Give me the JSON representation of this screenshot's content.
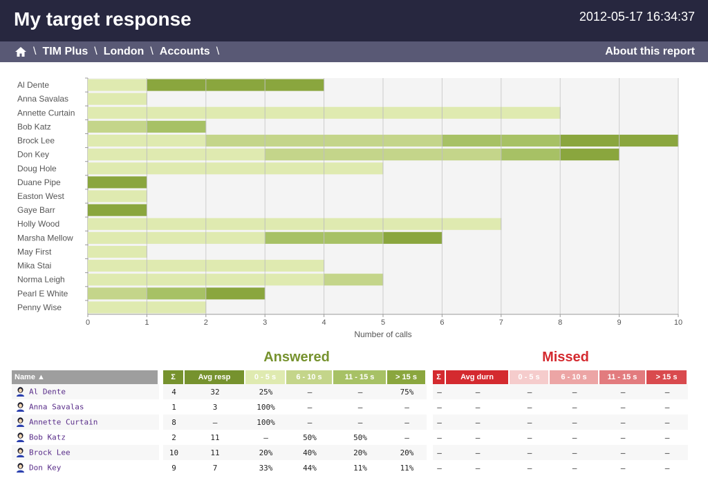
{
  "header": {
    "title": "My target response",
    "datetime": "2012-05-17 16:34:37"
  },
  "breadcrumb": {
    "home_icon": "home-icon",
    "items": [
      "TIM Plus",
      "London",
      "Accounts"
    ],
    "separator": "\\",
    "about": "About this report"
  },
  "colors": {
    "header_bg": "#27273f",
    "breadcrumb_bg": "#595975",
    "bucket_0_5": "#dfeab0",
    "bucket_6_10": "#c4d58a",
    "bucket_11_15": "#a7c165",
    "bucket_over_15": "#8aa63e",
    "answered_accent": "#76922e",
    "missed_accent": "#d42a2f"
  },
  "chart_data": {
    "type": "bar",
    "orientation": "horizontal",
    "stacked": true,
    "categories": [
      "Al Dente",
      "Anna Savalas",
      "Annette Curtain",
      "Bob Katz",
      "Brock Lee",
      "Don Key",
      "Doug Hole",
      "Duane Pipe",
      "Easton West",
      "Gaye Barr",
      "Holly Wood",
      "Marsha Mellow",
      "May First",
      "Mika Stai",
      "Norma Leigh",
      "Pearl E White",
      "Penny Wise"
    ],
    "series": [
      {
        "name": "0 - 5 s",
        "values": [
          1,
          1,
          8,
          0,
          2,
          3,
          5,
          0,
          1,
          0,
          7,
          3,
          1,
          4,
          4,
          0,
          2
        ]
      },
      {
        "name": "6 - 10 s",
        "values": [
          0,
          0,
          0,
          1,
          4,
          4,
          0,
          0,
          0,
          0,
          0,
          0,
          0,
          0,
          1,
          1,
          0
        ]
      },
      {
        "name": "11 - 15 s",
        "values": [
          0,
          0,
          0,
          1,
          2,
          1,
          0,
          0,
          0,
          0,
          0,
          2,
          0,
          0,
          0,
          1,
          0
        ]
      },
      {
        "name": "> 15 s",
        "values": [
          3,
          0,
          0,
          0,
          2,
          1,
          0,
          1,
          0,
          1,
          0,
          1,
          0,
          0,
          0,
          1,
          0
        ]
      }
    ],
    "xlabel": "Number of calls",
    "xlim": [
      0,
      10
    ],
    "xticks": [
      0,
      1,
      2,
      3,
      4,
      5,
      6,
      7,
      8,
      9,
      10
    ],
    "grid": true
  },
  "table": {
    "answered_title": "Answered",
    "missed_title": "Missed",
    "headers": {
      "name": "Name ▲",
      "answered": [
        "Σ",
        "Avg resp",
        "0 - 5 s",
        "6 - 10 s",
        "11 - 15 s",
        "> 15 s"
      ],
      "missed": [
        "Σ",
        "Avg durn",
        "0 - 5 s",
        "6 - 10 s",
        "11 - 15 s",
        "> 15 s"
      ]
    },
    "rows": [
      {
        "name": "Al Dente",
        "sum": "4",
        "avg": "32",
        "b1": "25%",
        "b2": "–",
        "b3": "–",
        "b4": "75%",
        "m_sum": "–",
        "m_avg": "–",
        "m1": "–",
        "m2": "–",
        "m3": "–",
        "m4": "–"
      },
      {
        "name": "Anna Savalas",
        "sum": "1",
        "avg": "3",
        "b1": "100%",
        "b2": "–",
        "b3": "–",
        "b4": "–",
        "m_sum": "–",
        "m_avg": "–",
        "m1": "–",
        "m2": "–",
        "m3": "–",
        "m4": "–"
      },
      {
        "name": "Annette Curtain",
        "sum": "8",
        "avg": "–",
        "b1": "100%",
        "b2": "–",
        "b3": "–",
        "b4": "–",
        "m_sum": "–",
        "m_avg": "–",
        "m1": "–",
        "m2": "–",
        "m3": "–",
        "m4": "–"
      },
      {
        "name": "Bob Katz",
        "sum": "2",
        "avg": "11",
        "b1": "–",
        "b2": "50%",
        "b3": "50%",
        "b4": "–",
        "m_sum": "–",
        "m_avg": "–",
        "m1": "–",
        "m2": "–",
        "m3": "–",
        "m4": "–"
      },
      {
        "name": "Brock Lee",
        "sum": "10",
        "avg": "11",
        "b1": "20%",
        "b2": "40%",
        "b3": "20%",
        "b4": "20%",
        "m_sum": "–",
        "m_avg": "–",
        "m1": "–",
        "m2": "–",
        "m3": "–",
        "m4": "–"
      },
      {
        "name": "Don Key",
        "sum": "9",
        "avg": "7",
        "b1": "33%",
        "b2": "44%",
        "b3": "11%",
        "b4": "11%",
        "m_sum": "–",
        "m_avg": "–",
        "m1": "–",
        "m2": "–",
        "m3": "–",
        "m4": "–"
      }
    ]
  }
}
